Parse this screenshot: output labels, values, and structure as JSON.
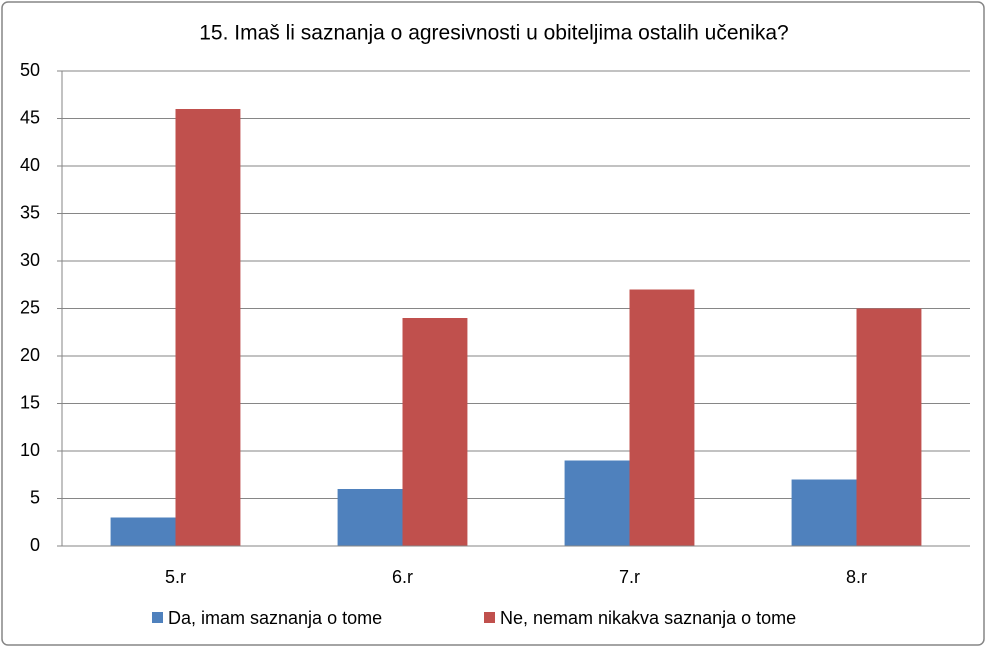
{
  "chart_data": {
    "type": "bar",
    "title": "15. Imaš li saznanja o agresivnosti u obiteljima ostalih učenika?",
    "categories": [
      "5.r",
      "6.r",
      "7.r",
      "8.r"
    ],
    "series": [
      {
        "name": "Da, imam saznanja o tome",
        "color": "#4f81bd",
        "values": [
          3,
          6,
          9,
          7
        ]
      },
      {
        "name": "Ne, nemam nikakva saznanja o tome",
        "color": "#c0504d",
        "values": [
          46,
          24,
          27,
          25
        ]
      }
    ],
    "ylim": [
      0,
      50
    ],
    "yticks": [
      0,
      5,
      10,
      15,
      20,
      25,
      30,
      35,
      40,
      45,
      50
    ],
    "grid": true,
    "legend": "bottom"
  }
}
